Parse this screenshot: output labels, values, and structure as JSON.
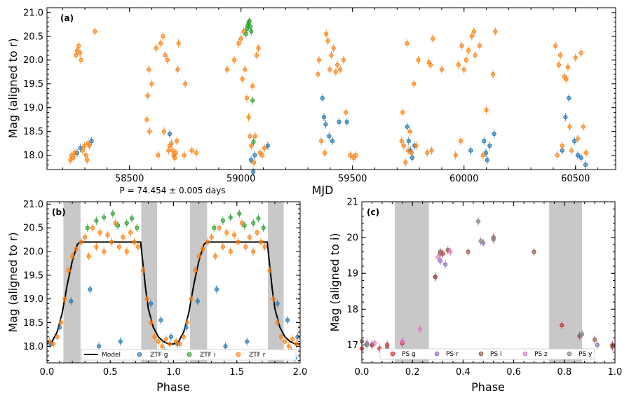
{
  "colors": {
    "ztf_g": "#1f77b4",
    "ztf_i": "#2ca02c",
    "ztf_r": "#ff7f0e",
    "ps_g": "#d62728",
    "ps_r": "#9467bd",
    "ps_i": "#8c564b",
    "ps_z": "#e377c2",
    "ps_y": "#7f7f7f",
    "shade": "#c8c8c8",
    "model": "#000000"
  },
  "chart_data": [
    {
      "id": "a",
      "type": "scatter",
      "panel_label": "(a)",
      "xlabel": "MJD",
      "ylabel": "Mag (aligned to r)",
      "xlim": [
        58130,
        60680
      ],
      "ylim": [
        21.1,
        17.7
      ],
      "y_inverted": true,
      "xticks": [
        58500,
        59000,
        59500,
        60000,
        60500
      ],
      "yticks": [
        18.0,
        18.5,
        19.0,
        19.5,
        20.0,
        20.5,
        21.0
      ],
      "ytick_labels": [
        "18.0",
        "18.5",
        "19.0",
        "19.5",
        "20.0",
        "20.5",
        "21.0"
      ],
      "annotation": "P = 74.454 ± 0.005 days",
      "series": [
        {
          "name": "ZTF g",
          "color_key": "ztf_g",
          "x": [
            58265,
            58280,
            58330,
            58680,
            59045,
            59055,
            59062,
            59120,
            59365,
            59372,
            59380,
            59395,
            59410,
            59440,
            59475,
            59745,
            59752,
            59760,
            59768,
            59778,
            60030,
            60090,
            60098,
            60104,
            60115,
            60135,
            60440,
            60455,
            60470,
            60495,
            60510,
            60525,
            60545
          ],
          "y": [
            18.05,
            18.15,
            18.3,
            18.45,
            17.9,
            17.65,
            18.0,
            18.2,
            19.2,
            18.8,
            18.65,
            18.4,
            18.3,
            18.7,
            18.7,
            18.6,
            18.3,
            18.1,
            17.95,
            18.2,
            18.1,
            18.3,
            18.05,
            17.9,
            18.2,
            18.45,
            18.1,
            18.8,
            19.2,
            18.3,
            18.0,
            17.95,
            17.8
          ]
        },
        {
          "name": "ZTF i",
          "color_key": "ztf_i",
          "x": [
            59022,
            59026,
            59030,
            59034,
            59038,
            59042,
            59046,
            59052,
            59056
          ],
          "y": [
            20.55,
            20.65,
            20.72,
            20.78,
            20.82,
            20.7,
            20.6,
            19.15,
            18.28
          ]
        },
        {
          "name": "ZTF r",
          "color_key": "ztf_r",
          "x": [
            58235,
            58240,
            58248,
            58255,
            58260,
            58265,
            58272,
            58278,
            58283,
            58290,
            58298,
            58305,
            58310,
            58315,
            58320,
            58345,
            58578,
            58582,
            58587,
            58590,
            58600,
            58620,
            58628,
            58640,
            58650,
            58655,
            58660,
            58670,
            58675,
            58680,
            58688,
            58693,
            58698,
            58703,
            58708,
            58712,
            58716,
            58720,
            58745,
            58750,
            58780,
            58800,
            58938,
            58970,
            58990,
            59000,
            59006,
            59012,
            59018,
            59026,
            59034,
            59040,
            59046,
            59052,
            59058,
            59064,
            59070,
            59078,
            59085,
            59095,
            59105,
            59345,
            59350,
            59360,
            59375,
            59382,
            59390,
            59398,
            59405,
            59415,
            59425,
            59432,
            59445,
            59460,
            59470,
            59490,
            59505,
            59515,
            59720,
            59725,
            59730,
            59738,
            59744,
            59750,
            59758,
            59765,
            59775,
            59785,
            59795,
            59835,
            59842,
            59850,
            59855,
            59860,
            59900,
            59962,
            59975,
            59985,
            59990,
            60000,
            60010,
            60020,
            60035,
            60045,
            60050,
            60070,
            60085,
            60100,
            60130,
            60140,
            60410,
            60418,
            60425,
            60432,
            60440,
            60450,
            60458,
            60466,
            60474,
            60482,
            60500,
            60510,
            60525,
            60535,
            60548
          ],
          "y": [
            17.9,
            18.0,
            17.95,
            18.05,
            20.1,
            20.2,
            20.3,
            20.15,
            20.0,
            18.1,
            18.2,
            18.0,
            17.9,
            18.25,
            18.2,
            20.6,
            18.75,
            19.25,
            19.8,
            18.5,
            19.5,
            20.25,
            18.0,
            20.35,
            20.5,
            18.5,
            20.1,
            20.0,
            18.1,
            18.2,
            18.25,
            18.1,
            18.0,
            17.95,
            18.05,
            18.3,
            19.8,
            20.35,
            18.0,
            19.5,
            18.1,
            18.05,
            19.8,
            20.0,
            20.35,
            20.45,
            19.6,
            20.6,
            19.8,
            19.2,
            18.8,
            18.4,
            18.2,
            19.45,
            17.85,
            18.4,
            20.1,
            20.25,
            18.05,
            18.0,
            18.15,
            19.7,
            20.0,
            18.3,
            18.05,
            20.55,
            20.4,
            19.8,
            20.1,
            20.25,
            19.75,
            19.9,
            19.8,
            20.0,
            18.9,
            18.0,
            17.95,
            18.0,
            18.3,
            18.9,
            18.2,
            17.85,
            20.35,
            18.1,
            18.5,
            18.05,
            19.5,
            18.2,
            20.0,
            18.05,
            19.95,
            19.9,
            18.1,
            20.45,
            19.8,
            18.0,
            19.9,
            18.3,
            20.3,
            19.8,
            20.0,
            20.2,
            20.5,
            20.6,
            20.1,
            20.3,
            18.0,
            18.95,
            19.7,
            20.6,
            20.3,
            18.0,
            19.9,
            20.1,
            18.2,
            19.65,
            19.6,
            19.85,
            18.6,
            18.1,
            20.05,
            18.35,
            20.15,
            18.6,
            18.05
          ]
        }
      ]
    },
    {
      "id": "b",
      "type": "scatter",
      "panel_label": "(b)",
      "xlabel": "Phase",
      "ylabel": "Mag (aligned to r)",
      "xlim": [
        0.0,
        2.0
      ],
      "ylim": [
        21.05,
        17.65
      ],
      "y_inverted": true,
      "xticks": [
        0.0,
        0.5,
        1.0,
        1.5,
        2.0
      ],
      "xtick_labels": [
        "0.0",
        "0.5",
        "1.0",
        "1.5",
        "2.0"
      ],
      "yticks": [
        18.0,
        18.5,
        19.0,
        19.5,
        20.0,
        20.5,
        21.0
      ],
      "ytick_labels": [
        "18.0",
        "18.5",
        "19.0",
        "19.5",
        "20.0",
        "20.5",
        "21.0"
      ],
      "shaded_phase": [
        [
          0.13,
          0.265
        ],
        [
          0.745,
          0.87
        ],
        [
          1.13,
          1.265
        ],
        [
          1.745,
          1.87
        ]
      ],
      "model": {
        "name": "Model",
        "x": [
          0,
          0.04,
          0.08,
          0.12,
          0.16,
          0.2,
          0.24,
          0.26,
          0.74,
          0.76,
          0.78,
          0.8,
          0.84,
          0.88,
          0.92,
          0.96,
          1.0,
          1.04,
          1.08,
          1.12,
          1.16,
          1.2,
          1.24,
          1.26,
          1.74,
          1.76,
          1.78,
          1.8,
          1.84,
          1.88,
          1.92,
          1.96,
          2.0
        ],
        "y": [
          18.05,
          18.1,
          18.3,
          18.7,
          19.3,
          19.8,
          20.15,
          20.2,
          20.2,
          19.7,
          19.2,
          18.8,
          18.4,
          18.2,
          18.1,
          18.05,
          18.05,
          18.1,
          18.3,
          18.7,
          19.3,
          19.8,
          20.15,
          20.2,
          20.2,
          19.7,
          19.2,
          18.8,
          18.4,
          18.2,
          18.1,
          18.05,
          18.05
        ]
      },
      "series": [
        {
          "name": "ZTF g",
          "color_key": "ztf_g",
          "x": [
            0.03,
            0.1,
            0.19,
            0.34,
            0.41,
            0.58,
            0.82,
            0.9,
            0.93,
            0.96,
            0.98,
            1.03,
            1.1,
            1.19,
            1.34,
            1.41,
            1.58,
            1.82,
            1.9,
            1.93,
            1.96,
            1.98
          ],
          "y": [
            18.05,
            18.4,
            18.95,
            19.2,
            18.0,
            18.1,
            18.9,
            18.55,
            17.9,
            17.75,
            18.2,
            18.05,
            18.4,
            18.95,
            19.2,
            18.0,
            18.1,
            18.9,
            18.55,
            17.9,
            17.75,
            18.2
          ]
        },
        {
          "name": "ZTF i",
          "color_key": "ztf_i",
          "x": [
            0.32,
            0.39,
            0.45,
            0.52,
            0.56,
            0.63,
            0.67,
            0.71,
            1.32,
            1.39,
            1.45,
            1.52,
            1.56,
            1.63,
            1.67,
            1.71
          ],
          "y": [
            20.5,
            20.65,
            20.72,
            20.8,
            20.55,
            20.6,
            20.7,
            20.5,
            20.5,
            20.65,
            20.72,
            20.8,
            20.55,
            20.6,
            20.7,
            20.5
          ]
        },
        {
          "name": "ZTF r",
          "color_key": "ztf_r",
          "x": [
            0.02,
            0.05,
            0.08,
            0.11,
            0.14,
            0.17,
            0.2,
            0.23,
            0.27,
            0.3,
            0.33,
            0.36,
            0.39,
            0.42,
            0.45,
            0.48,
            0.51,
            0.54,
            0.57,
            0.6,
            0.63,
            0.66,
            0.69,
            0.72,
            0.76,
            0.79,
            0.82,
            0.85,
            0.88,
            0.91,
            0.94,
            0.97,
            1.02,
            1.05,
            1.08,
            1.11,
            1.14,
            1.17,
            1.2,
            1.23,
            1.27,
            1.3,
            1.33,
            1.36,
            1.39,
            1.42,
            1.45,
            1.48,
            1.51,
            1.54,
            1.57,
            1.6,
            1.63,
            1.66,
            1.69,
            1.72,
            1.76,
            1.79,
            1.82,
            1.85,
            1.88,
            1.91,
            1.94,
            1.97
          ],
          "y": [
            18.1,
            18.05,
            18.2,
            18.5,
            19.0,
            19.6,
            19.9,
            20.05,
            20.2,
            20.3,
            19.9,
            20.5,
            20.1,
            20.4,
            20.0,
            20.35,
            20.2,
            20.6,
            20.1,
            20.3,
            20.0,
            20.4,
            20.2,
            20.1,
            19.6,
            19.0,
            18.5,
            18.2,
            18.1,
            18.0,
            18.15,
            18.05,
            18.1,
            18.05,
            18.2,
            18.5,
            19.0,
            19.6,
            19.9,
            20.05,
            20.2,
            20.3,
            19.9,
            20.5,
            20.1,
            20.4,
            20.0,
            20.35,
            20.2,
            20.6,
            20.1,
            20.3,
            20.0,
            20.4,
            20.2,
            20.1,
            19.6,
            19.0,
            18.5,
            18.2,
            18.1,
            18.0,
            18.15,
            18.05
          ]
        }
      ],
      "legend": {
        "placement": "bottom",
        "entries": [
          "Model",
          "ZTF g",
          "ZTF i",
          "ZTF r"
        ]
      }
    },
    {
      "id": "c",
      "type": "scatter",
      "panel_label": "(c)",
      "xlabel": "Phase",
      "ylabel": "Mag (aligned to i)",
      "xlim": [
        0.0,
        1.0
      ],
      "ylim": [
        21.0,
        16.5
      ],
      "y_inverted": true,
      "xticks": [
        0.0,
        0.2,
        0.4,
        0.6,
        0.8,
        1.0
      ],
      "xtick_labels": [
        "0.0",
        "0.2",
        "0.4",
        "0.6",
        "0.8",
        "1.0"
      ],
      "yticks": [
        17,
        18,
        19,
        20,
        21
      ],
      "ytick_labels": [
        "17",
        "18",
        "19",
        "20",
        "21"
      ],
      "shaded_phase": [
        [
          0.13,
          0.265
        ],
        [
          0.74,
          0.87
        ]
      ],
      "series": [
        {
          "name": "PS g",
          "color_key": "ps_g",
          "x": [
            0.0,
            0.04,
            0.07,
            0.1,
            0.16,
            0.29,
            0.32,
            0.79,
            0.99
          ],
          "y": [
            16.9,
            17.0,
            16.9,
            17.0,
            17.05,
            18.9,
            19.55,
            17.55,
            17.0
          ]
        },
        {
          "name": "PS r",
          "color_key": "ps_r",
          "x": [
            0.02,
            0.16,
            0.31,
            0.33,
            0.48,
            0.93
          ],
          "y": [
            17.05,
            17.1,
            19.35,
            19.25,
            19.85,
            17.0
          ]
        },
        {
          "name": "PS i",
          "color_key": "ps_i",
          "x": [
            0.0,
            0.04,
            0.1,
            0.29,
            0.31,
            0.34,
            0.42,
            0.52,
            0.68,
            0.86,
            0.92,
            0.99
          ],
          "y": [
            17.1,
            17.0,
            16.9,
            18.9,
            19.6,
            19.65,
            19.6,
            20.0,
            19.6,
            17.25,
            17.15,
            16.95
          ]
        },
        {
          "name": "PS z",
          "color_key": "ps_z",
          "x": [
            0.05,
            0.16,
            0.23,
            0.3,
            0.35
          ],
          "y": [
            17.05,
            17.1,
            17.45,
            19.45,
            19.6
          ]
        },
        {
          "name": "PS y",
          "color_key": "ps_y",
          "x": [
            0.02,
            0.31,
            0.46,
            0.47,
            0.52,
            0.87
          ],
          "y": [
            17.0,
            19.55,
            20.45,
            19.9,
            19.95,
            17.3
          ]
        }
      ],
      "legend": {
        "placement": "bottom",
        "entries": [
          "PS g",
          "PS r",
          "PS i",
          "PS z",
          "PS y"
        ]
      }
    }
  ]
}
